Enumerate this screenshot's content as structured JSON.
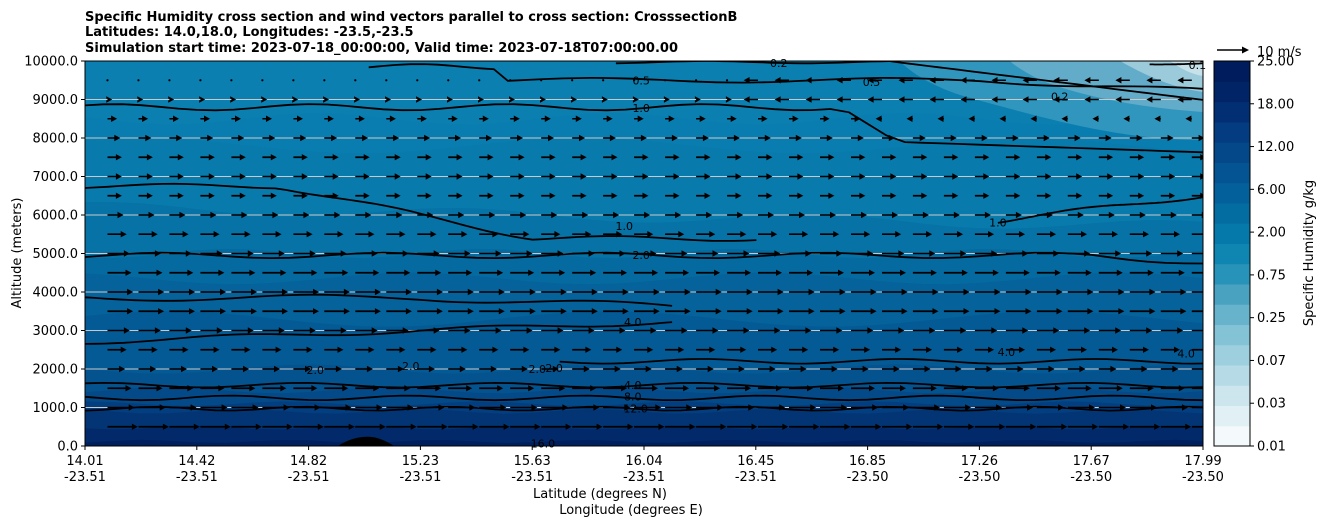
{
  "chart_data": {
    "type": "heatmap",
    "title_lines": [
      "Specific Humidity cross section and wind vectors parallel to cross section: CrosssectionB",
      "Latitudes: 14.0,18.0, Longitudes: -23.5,-23.5",
      "Simulation start time: 2023-07-18_00:00:00, Valid time: 2023-07-18T07:00:00.00"
    ],
    "ylabel": "Altitude (meters)",
    "xlabel_lines": [
      "Latitude (degrees N)",
      "Longitude (degrees E)"
    ],
    "ylim": [
      0,
      10000
    ],
    "y_ticks": [
      {
        "value": 0,
        "label": "0.0"
      },
      {
        "value": 1000,
        "label": "1000.0"
      },
      {
        "value": 2000,
        "label": "2000.0"
      },
      {
        "value": 3000,
        "label": "3000.0"
      },
      {
        "value": 4000,
        "label": "4000.0"
      },
      {
        "value": 5000,
        "label": "5000.0"
      },
      {
        "value": 6000,
        "label": "6000.0"
      },
      {
        "value": 7000,
        "label": "7000.0"
      },
      {
        "value": 8000,
        "label": "8000.0"
      },
      {
        "value": 9000,
        "label": "9000.0"
      },
      {
        "value": 10000,
        "label": "10000.0"
      }
    ],
    "x_ticks": [
      {
        "lat": "14.01",
        "lon": "-23.51"
      },
      {
        "lat": "14.42",
        "lon": "-23.51"
      },
      {
        "lat": "14.82",
        "lon": "-23.51"
      },
      {
        "lat": "15.23",
        "lon": "-23.51"
      },
      {
        "lat": "15.63",
        "lon": "-23.51"
      },
      {
        "lat": "16.04",
        "lon": "-23.51"
      },
      {
        "lat": "16.45",
        "lon": "-23.51"
      },
      {
        "lat": "16.85",
        "lon": "-23.50"
      },
      {
        "lat": "17.26",
        "lon": "-23.50"
      },
      {
        "lat": "17.67",
        "lon": "-23.50"
      },
      {
        "lat": "17.99",
        "lon": "-23.50"
      }
    ],
    "colorbar": {
      "label": "Specific Humidity g/kg",
      "tick_labels": [
        "0.01",
        "0.03",
        "0.07",
        "0.25",
        "0.75",
        "2.00",
        "6.00",
        "12.00",
        "18.00",
        "25.00"
      ],
      "colors": [
        "#f4fafc",
        "#e1f0f4",
        "#cde6ed",
        "#b7dbe6",
        "#9ecfde",
        "#84c2d6",
        "#68b3cc",
        "#4aa2c1",
        "#2893b8",
        "#0f86b2",
        "#057aaa",
        "#036da1",
        "#03609a",
        "#045493",
        "#04488a",
        "#033c80",
        "#022f74",
        "#012466",
        "#001c5c"
      ]
    },
    "quiver_key": {
      "label": "10 m/s",
      "speed": 10
    },
    "grid": "horizontal",
    "contours": [
      {
        "label": "0.1",
        "level": 0.1
      },
      {
        "label": "0.2",
        "level": 0.2
      },
      {
        "label": "0.5",
        "level": 0.5
      },
      {
        "label": "1.0",
        "level": 1.0
      },
      {
        "label": "2.0",
        "level": 2.0
      },
      {
        "label": "4.0",
        "level": 4.0
      },
      {
        "label": "8.0",
        "level": 8.0
      },
      {
        "label": "12.0",
        "level": 12.0
      },
      {
        "label": "16.0",
        "level": 16.0
      }
    ],
    "contour_labels": [
      {
        "text": "0.1",
        "x": 17.97,
        "y": 9900
      },
      {
        "text": "0.2",
        "x": 16.48,
        "y": 9950
      },
      {
        "text": "0.5",
        "x": 16.81,
        "y": 9450
      },
      {
        "text": "0.2",
        "x": 17.48,
        "y": 9080
      },
      {
        "text": "0.5",
        "x": 15.99,
        "y": 9500
      },
      {
        "text": "1.0",
        "x": 15.99,
        "y": 8780
      },
      {
        "text": "1.0",
        "x": 15.93,
        "y": 5720
      },
      {
        "text": "1.0",
        "x": 17.26,
        "y": 5800
      },
      {
        "text": "2.0",
        "x": 15.99,
        "y": 4960
      },
      {
        "text": "4.0",
        "x": 15.96,
        "y": 3220
      },
      {
        "text": "2.0",
        "x": 15.68,
        "y": 2020
      },
      {
        "text": "2.0",
        "x": 14.83,
        "y": 1980
      },
      {
        "text": "2.0",
        "x": 15.17,
        "y": 2080
      },
      {
        "text": "2.0",
        "x": 15.62,
        "y": 2000
      },
      {
        "text": "4.0",
        "x": 17.29,
        "y": 2440
      },
      {
        "text": "4.0",
        "x": 17.93,
        "y": 2400
      },
      {
        "text": "4.0",
        "x": 15.96,
        "y": 1580
      },
      {
        "text": "8.0",
        "x": 15.96,
        "y": 1280
      },
      {
        "text": "12.0",
        "x": 15.97,
        "y": 980
      },
      {
        "text": "16.0",
        "x": 15.64,
        "y": 60
      }
    ],
    "wind_rows": [
      {
        "z": 500,
        "u": 9.5
      },
      {
        "z": 1000,
        "u": 8.5
      },
      {
        "z": 1500,
        "u": 7.5
      },
      {
        "z": 2000,
        "u": 5.5
      },
      {
        "z": 2500,
        "u": 6
      },
      {
        "z": 3000,
        "u": 7
      },
      {
        "z": 3500,
        "u": 8
      },
      {
        "z": 4000,
        "u": 8
      },
      {
        "z": 4500,
        "u": 7.5
      },
      {
        "z": 5000,
        "u": 7
      },
      {
        "z": 5500,
        "u": 6
      },
      {
        "z": 6000,
        "u": 5
      },
      {
        "z": 6500,
        "u": 4.5
      },
      {
        "z": 7000,
        "u": 4.5
      },
      {
        "z": 7500,
        "u": 4.5
      },
      {
        "z": 8000,
        "u": 4
      },
      {
        "z": 8500,
        "u": 3
      },
      {
        "z": 9000,
        "u": 1.5
      },
      {
        "z": 9500,
        "u": 0
      }
    ]
  }
}
